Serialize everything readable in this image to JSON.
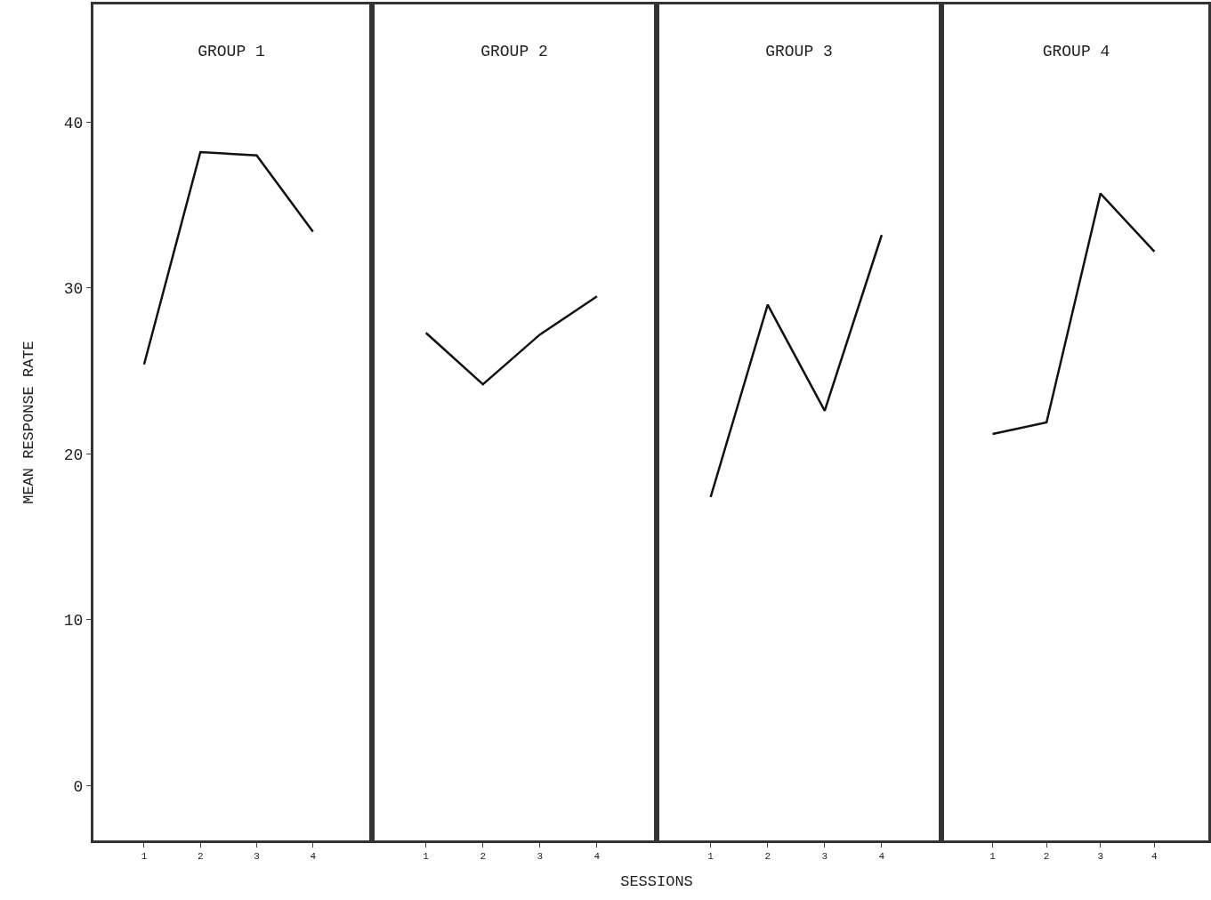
{
  "chart_data": [
    {
      "type": "line",
      "title": "GROUP 1",
      "ylabel": "MEAN RESPONSE RATE",
      "x": [
        1,
        2,
        3,
        4
      ],
      "series": [
        {
          "color": "#111111",
          "values": [
            25.4,
            38.2,
            38.0,
            33.4
          ]
        }
      ],
      "xlim": [
        0.1,
        5.0
      ],
      "xticks": [
        1,
        2,
        3,
        4
      ],
      "ylim": [
        -3.3,
        47.1
      ],
      "yticks": [
        0,
        10,
        20,
        30,
        40
      ],
      "grid": false,
      "marker": "none",
      "line_style": "solid"
    },
    {
      "type": "line",
      "title": "GROUP 2",
      "xlabel": "SESSIONS",
      "x": [
        1,
        2,
        3,
        4
      ],
      "series": [
        {
          "color": "#111111",
          "values": [
            27.3,
            24.2,
            27.2,
            29.5
          ]
        }
      ],
      "xlim": [
        0.1,
        5.0
      ],
      "xticks": [
        1,
        2,
        3,
        4
      ],
      "ylim": [
        -3.3,
        47.1
      ],
      "yticks": [
        0,
        10,
        20,
        30,
        40
      ],
      "grid": false,
      "marker": "none",
      "line_style": "solid",
      "tick_labels": "x"
    },
    {
      "type": "line",
      "title": "GROUP 3",
      "x": [
        1,
        2,
        3,
        4
      ],
      "series": [
        {
          "color": "#111111",
          "values": [
            17.4,
            29.0,
            22.6,
            33.2
          ]
        }
      ],
      "xlim": [
        0.1,
        5.0
      ],
      "xticks": [
        1,
        2,
        3,
        4
      ],
      "ylim": [
        -3.3,
        47.1
      ],
      "yticks": [
        0,
        10,
        20,
        30,
        40
      ],
      "grid": false,
      "marker": "none",
      "line_style": "solid",
      "tick_labels": "x"
    },
    {
      "type": "line",
      "title": "GROUP 4",
      "x": [
        1,
        2,
        3,
        4
      ],
      "series": [
        {
          "color": "#111111",
          "values": [
            21.2,
            21.9,
            35.7,
            32.2
          ]
        }
      ],
      "xlim": [
        0.1,
        5.0
      ],
      "xticks": [
        1,
        2,
        3,
        4
      ],
      "ylim": [
        -3.3,
        47.1
      ],
      "yticks": [
        0,
        10,
        20,
        30,
        40
      ],
      "grid": false,
      "marker": "none",
      "line_style": "solid",
      "tick_labels": "x"
    }
  ]
}
